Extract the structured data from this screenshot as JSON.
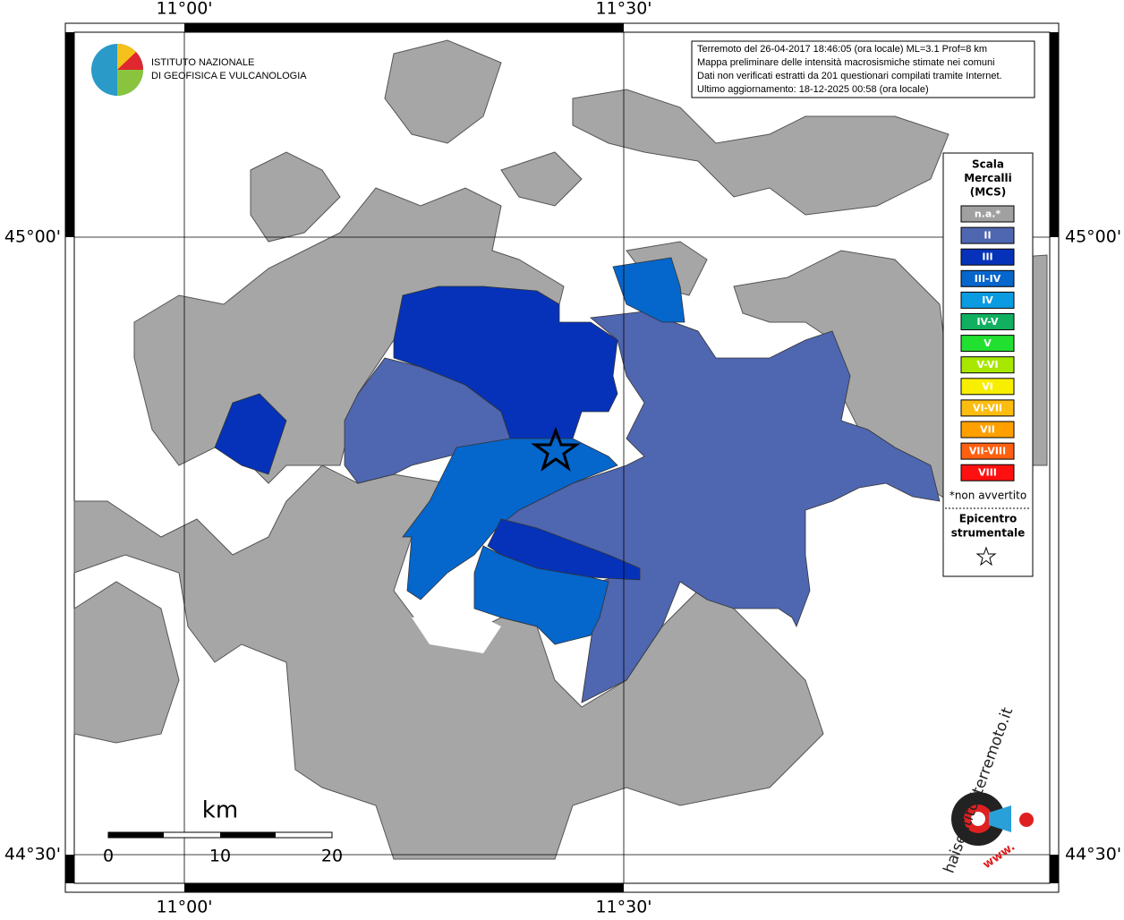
{
  "axes": {
    "top": [
      "11°00'",
      "11°30'"
    ],
    "bottom": [
      "11°00'",
      "11°30'"
    ],
    "left": [
      "45°00'",
      "44°30'"
    ],
    "right": [
      "45°00'",
      "44°30'"
    ]
  },
  "logo": {
    "line1": "ISTITUTO NAZIONALE",
    "line2": "DI GEOFISICA E VULCANOLOGIA"
  },
  "info": [
    "Terremoto del 26-04-2017 18:46:05 (ora locale) ML=3.1 Prof=8 km",
    "Mappa preliminare delle intensità macrosismiche stimate nei comuni",
    "Dati non verificati estratti da 201 questionari compilati tramite Internet.",
    "Ultimo aggiornamento: 18-12-2025 00:58 (ora locale)"
  ],
  "legend": {
    "title": [
      "Scala",
      "Mercalli",
      "(MCS)"
    ],
    "items": [
      {
        "label": "n.a.*",
        "color": "#a0a0a0"
      },
      {
        "label": "II",
        "color": "#4f66b0"
      },
      {
        "label": "III",
        "color": "#0532b8"
      },
      {
        "label": "III-IV",
        "color": "#0566cc"
      },
      {
        "label": "IV",
        "color": "#0a9be0"
      },
      {
        "label": "IV-V",
        "color": "#10b060"
      },
      {
        "label": "V",
        "color": "#22e030"
      },
      {
        "label": "V-VI",
        "color": "#a8e800"
      },
      {
        "label": "VI",
        "color": "#f8ee00"
      },
      {
        "label": "VI-VII",
        "color": "#fcbc10"
      },
      {
        "label": "VII",
        "color": "#ffa000"
      },
      {
        "label": "VII-VIII",
        "color": "#ff6010"
      },
      {
        "label": "VIII",
        "color": "#ff1010"
      }
    ],
    "note": "*non avvertito",
    "epicenter": [
      "Epicentro",
      "strumentale"
    ]
  },
  "scale": {
    "unit": "km",
    "ticks": [
      "0",
      "10",
      "20"
    ]
  },
  "brand": {
    "name": "haisentitoilterremoto.it",
    "prefix": "www."
  }
}
